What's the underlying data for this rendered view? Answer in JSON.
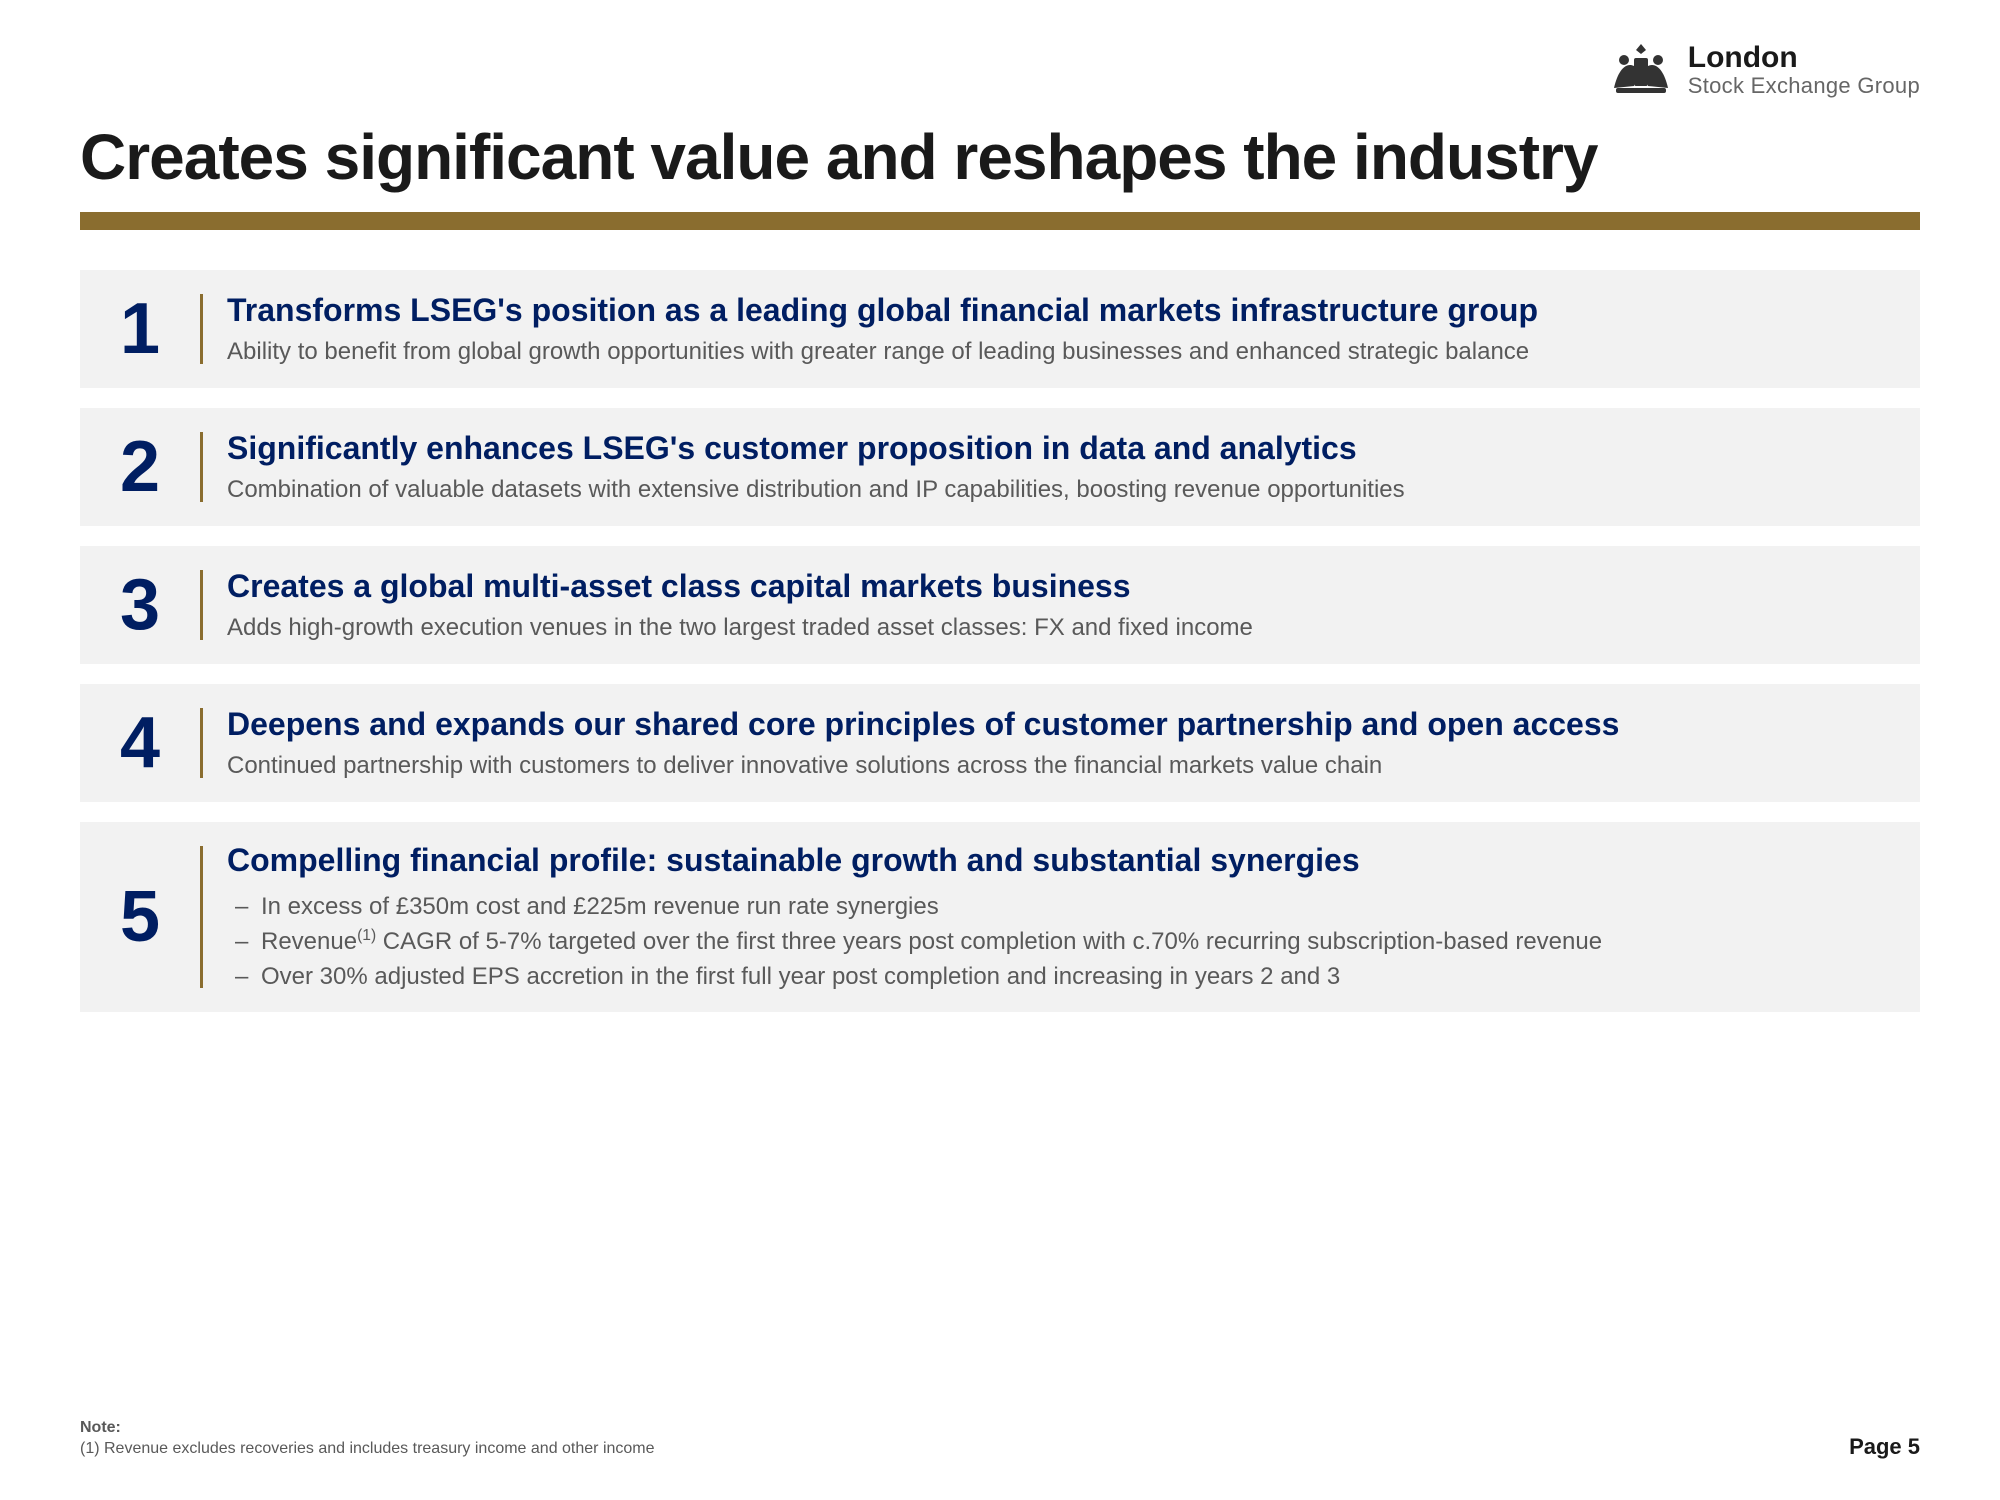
{
  "colors": {
    "title_text": "#1a1a1a",
    "heading_text": "#001e62",
    "desc_text": "#595959",
    "item_bg": "#f2f2f2",
    "divider": "#8a6d2f",
    "vertical_sep": "#8a6d2f",
    "number_text": "#001e62",
    "footnote_text": "#595959",
    "page_num_text": "#1a1a1a"
  },
  "logo": {
    "line1": "London",
    "line2": "Stock Exchange Group"
  },
  "title": "Creates significant value and reshapes the industry",
  "items": [
    {
      "n": "1",
      "heading": "Transforms LSEG's position as a leading global financial markets infrastructure group",
      "desc": "Ability to benefit from global growth opportunities with greater range of leading businesses and enhanced strategic balance"
    },
    {
      "n": "2",
      "heading": "Significantly enhances LSEG's customer proposition in data and analytics",
      "desc": "Combination of valuable datasets with extensive distribution and IP capabilities, boosting revenue opportunities"
    },
    {
      "n": "3",
      "heading": "Creates a global multi-asset class capital markets business",
      "desc": "Adds high-growth execution venues in the two largest traded asset classes: FX and fixed income"
    },
    {
      "n": "4",
      "heading": "Deepens and expands our shared core principles of customer partnership and open access",
      "desc": "Continued partnership with customers to deliver innovative solutions across the financial markets value chain"
    },
    {
      "n": "5",
      "heading": "Compelling financial profile: sustainable growth and substantial synergies",
      "bullets": [
        "In excess of £350m cost and £225m revenue run rate synergies",
        "Revenue<sup>(1)</sup> CAGR of 5-7% targeted over the first three years post completion with c.70% recurring subscription-based revenue",
        "Over 30% adjusted EPS accretion in the first full year post completion and increasing in years 2 and 3"
      ]
    }
  ],
  "footnote": {
    "title": "Note:",
    "text": "(1) Revenue excludes recoveries and includes treasury income and other income"
  },
  "page": "Page 5"
}
